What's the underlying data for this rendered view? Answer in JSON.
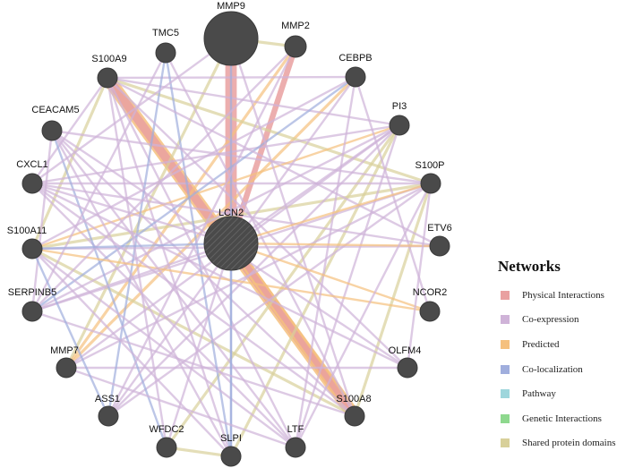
{
  "center": "LCN2",
  "nodes": [
    "MMP9",
    "TMC5",
    "MMP2",
    "S100A9",
    "CEBPB",
    "CEACAM5",
    "PI3",
    "CXCL1",
    "S100P",
    "LCN2",
    "S100A11",
    "ETV6",
    "SERPINB5",
    "NCOR2",
    "MMP7",
    "OLFM4",
    "ASS1",
    "S100A8",
    "WFDC2",
    "SLPI",
    "LTF"
  ],
  "legend": {
    "title": "Networks",
    "items": [
      {
        "label": "Physical Interactions",
        "color": "#e9a0a0"
      },
      {
        "label": "Co-expression",
        "color": "#cfb3d8"
      },
      {
        "label": "Predicted",
        "color": "#f5c07e"
      },
      {
        "label": "Co-localization",
        "color": "#a0aedd"
      },
      {
        "label": "Pathway",
        "color": "#9ed6dc"
      },
      {
        "label": "Genetic Interactions",
        "color": "#8ed88e"
      },
      {
        "label": "Shared protein domains",
        "color": "#d8d09a"
      }
    ]
  },
  "edges": [
    [
      "S100A9",
      "S100A8",
      "predicted",
      9
    ],
    [
      "S100A9",
      "S100A8",
      "physical",
      6
    ],
    [
      "MMP9",
      "LCN2",
      "physical",
      8
    ],
    [
      "LCN2",
      "S100A8",
      "predicted",
      7
    ],
    [
      "LCN2",
      "S100A8",
      "physical",
      4
    ],
    [
      "MMP2",
      "LCN2",
      "physical",
      4
    ],
    [
      "MMP9",
      "MMP2",
      "domains",
      2
    ],
    [
      "MMP9",
      "MMP7",
      "domains",
      2
    ],
    [
      "MMP2",
      "MMP7",
      "predicted",
      2
    ],
    [
      "CEBPB",
      "MMP7",
      "predicted",
      2
    ],
    [
      "S100A9",
      "S100P",
      "domains",
      2
    ],
    [
      "S100A9",
      "S100A11",
      "domains",
      2
    ],
    [
      "S100P",
      "S100A11",
      "domains",
      2
    ],
    [
      "S100A8",
      "S100P",
      "domains",
      2
    ],
    [
      "S100A8",
      "S100A11",
      "domains",
      2
    ],
    [
      "PI3",
      "SLPI",
      "domains",
      2
    ],
    [
      "WFDC2",
      "SLPI",
      "domains",
      2
    ],
    [
      "WFDC2",
      "PI3",
      "domains",
      2
    ],
    [
      "S100A9",
      "PI3",
      "coexp",
      1.5
    ],
    [
      "S100A9",
      "CEBPB",
      "coexp",
      1.5
    ],
    [
      "S100A9",
      "CXCL1",
      "coexp",
      1.5
    ],
    [
      "S100A9",
      "LTF",
      "coexp",
      1.5
    ],
    [
      "S100A9",
      "SLPI",
      "coexp",
      1.5
    ],
    [
      "CEACAM5",
      "S100P",
      "coexp",
      1.5
    ],
    [
      "CEACAM5",
      "S100A8",
      "coexp",
      1.5
    ],
    [
      "CEACAM5",
      "OLFM4",
      "coexp",
      1.5
    ],
    [
      "CXCL1",
      "S100P",
      "coexp",
      1.5
    ],
    [
      "CXCL1",
      "LTF",
      "coexp",
      1.5
    ],
    [
      "CXCL1",
      "PI3",
      "coexp",
      1.5
    ],
    [
      "S100A11",
      "PI3",
      "predicted",
      1.5
    ],
    [
      "S100A11",
      "ETV6",
      "coexp",
      1.5
    ],
    [
      "SERPINB5",
      "S100P",
      "coexp",
      1.5
    ],
    [
      "SERPINB5",
      "PI3",
      "coexp",
      1.5
    ],
    [
      "SERPINB5",
      "CEBPB",
      "coloc",
      1.5
    ],
    [
      "MMP7",
      "S100P",
      "coexp",
      1.5
    ],
    [
      "MMP7",
      "OLFM4",
      "coexp",
      1.5
    ],
    [
      "ASS1",
      "PI3",
      "coexp",
      1.5
    ],
    [
      "ASS1",
      "S100P",
      "coexp",
      1.5
    ],
    [
      "ASS1",
      "TMC5",
      "coloc",
      1.5
    ],
    [
      "WFDC2",
      "S100A9",
      "coexp",
      1.5
    ],
    [
      "WFDC2",
      "CEACAM5",
      "coloc",
      1.5
    ],
    [
      "SLPI",
      "CEACAM5",
      "coexp",
      1.5
    ],
    [
      "SLPI",
      "TMC5",
      "coloc",
      1.5
    ],
    [
      "LTF",
      "PI3",
      "coexp",
      1.5
    ],
    [
      "LTF",
      "S100A11",
      "coexp",
      1.5
    ],
    [
      "LTF",
      "CEACAM5",
      "coexp",
      1.5
    ],
    [
      "OLFM4",
      "CXCL1",
      "coexp",
      1.5
    ],
    [
      "OLFM4",
      "S100A9",
      "coexp",
      1.5
    ],
    [
      "NCOR2",
      "S100A11",
      "predicted",
      1.5
    ],
    [
      "NCOR2",
      "CEBPB",
      "coexp",
      1.5
    ],
    [
      "ETV6",
      "CXCL1",
      "coexp",
      1.5
    ],
    [
      "ETV6",
      "S100A9",
      "coexp",
      1.5
    ],
    [
      "CEBPB",
      "LTF",
      "coexp",
      1.5
    ],
    [
      "CEBPB",
      "S100A11",
      "coexp",
      1.5
    ],
    [
      "CEBPB",
      "ASS1",
      "coexp",
      1.5
    ],
    [
      "TMC5",
      "S100A8",
      "coexp",
      1.5
    ],
    [
      "TMC5",
      "SERPINB5",
      "coexp",
      1.5
    ],
    [
      "MMP9",
      "SLPI",
      "coloc",
      1.5
    ],
    [
      "MMP9",
      "CXCL1",
      "coexp",
      1.5
    ],
    [
      "MMP9",
      "S100A8",
      "coexp",
      1.5
    ],
    [
      "MMP2",
      "SERPINB5",
      "coexp",
      1.5
    ],
    [
      "MMP2",
      "ASS1",
      "coexp",
      1.5
    ],
    [
      "LCN2",
      "PI3",
      "coexp",
      1.5
    ],
    [
      "LCN2",
      "CXCL1",
      "coexp",
      1.5
    ],
    [
      "LCN2",
      "SLPI",
      "coloc",
      1.5
    ],
    [
      "LCN2",
      "S100P",
      "predicted",
      1.5
    ],
    [
      "LCN2",
      "ETV6",
      "predicted",
      1.5
    ],
    [
      "LCN2",
      "NCOR2",
      "predicted",
      1.5
    ],
    [
      "LCN2",
      "SERPINB5",
      "coexp",
      1.5
    ],
    [
      "LCN2",
      "WFDC2",
      "coexp",
      1.5
    ],
    [
      "LCN2",
      "S100A11",
      "coloc",
      1.5
    ],
    [
      "S100P",
      "OLFM4",
      "coexp",
      1.5
    ],
    [
      "S100P",
      "LTF",
      "coexp",
      1.5
    ],
    [
      "PI3",
      "MMP7",
      "coexp",
      1.5
    ],
    [
      "CXCL1",
      "S100A8",
      "coexp",
      1.5
    ],
    [
      "SERPINB5",
      "S100A8",
      "coexp",
      1.5
    ],
    [
      "S100A11",
      "SLPI",
      "coexp",
      1.5
    ],
    [
      "CEACAM5",
      "SERPINB5",
      "coexp",
      1.5
    ],
    [
      "MMP7",
      "LTF",
      "coexp",
      1.5
    ],
    [
      "ASS1",
      "S100A11",
      "coloc",
      1.5
    ]
  ]
}
